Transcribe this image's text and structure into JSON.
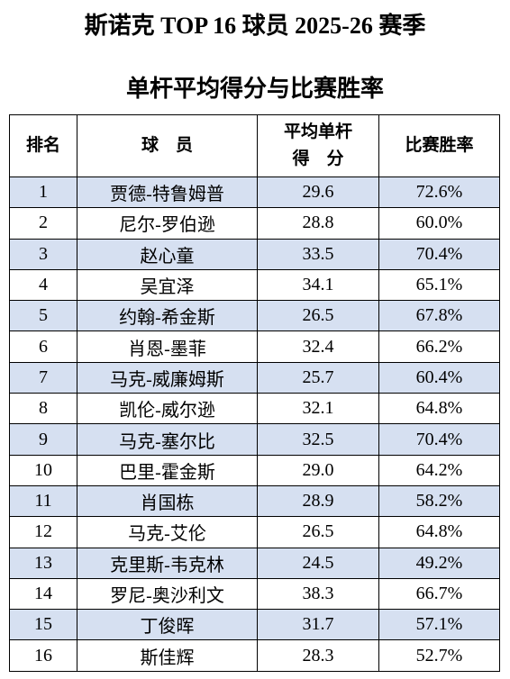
{
  "header": {
    "title": "斯诺克 TOP 16 球员 2025-26 赛季",
    "subtitle": "单杆平均得分与比赛胜率"
  },
  "table": {
    "columns": [
      "排名",
      "球　员",
      [
        "平均单杆",
        "得　分"
      ],
      "比赛胜率"
    ],
    "rows": [
      [
        "1",
        "贾德-特鲁姆普",
        "29.6",
        "72.6%"
      ],
      [
        "2",
        "尼尔-罗伯逊",
        "28.8",
        "60.0%"
      ],
      [
        "3",
        "赵心童",
        "33.5",
        "70.4%"
      ],
      [
        "4",
        "吴宜泽",
        "34.1",
        "65.1%"
      ],
      [
        "5",
        "约翰-希金斯",
        "26.5",
        "67.8%"
      ],
      [
        "6",
        "肖恩-墨菲",
        "32.4",
        "66.2%"
      ],
      [
        "7",
        "马克-威廉姆斯",
        "25.7",
        "60.4%"
      ],
      [
        "8",
        "凯伦-威尔逊",
        "32.1",
        "64.8%"
      ],
      [
        "9",
        "马克-塞尔比",
        "32.5",
        "70.4%"
      ],
      [
        "10",
        "巴里-霍金斯",
        "29.0",
        "64.2%"
      ],
      [
        "11",
        "肖国栋",
        "28.9",
        "58.2%"
      ],
      [
        "12",
        "马克-艾伦",
        "26.5",
        "64.8%"
      ],
      [
        "13",
        "克里斯-韦克林",
        "24.5",
        "49.2%"
      ],
      [
        "14",
        "罗尼-奥沙利文",
        "38.3",
        "66.7%"
      ],
      [
        "15",
        "丁俊晖",
        "31.7",
        "57.1%"
      ],
      [
        "16",
        "斯佳辉",
        "28.3",
        "52.7%"
      ]
    ]
  }
}
